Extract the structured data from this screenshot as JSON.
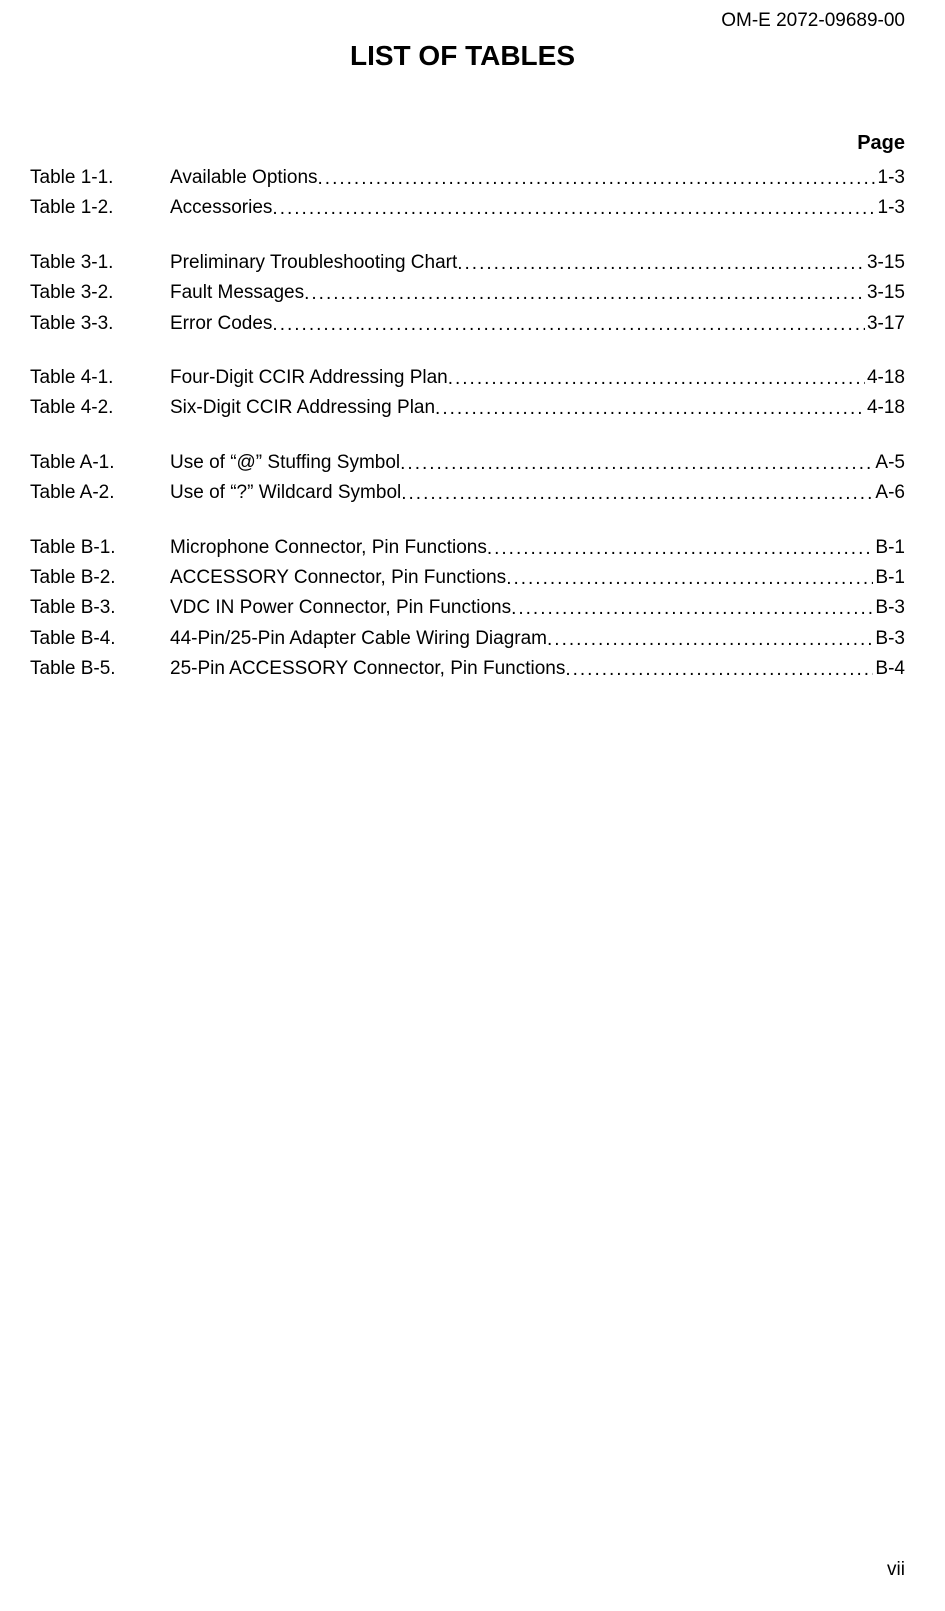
{
  "document_id": "OM-E 2072-09689-00",
  "title": "LIST OF TABLES",
  "page_header": "Page",
  "page_number": "vii",
  "groups": [
    {
      "entries": [
        {
          "label": "Table 1-1.",
          "title": "Available Options",
          "page": "1-3"
        },
        {
          "label": "Table 1-2.",
          "title": "Accessories",
          "page": "1-3"
        }
      ]
    },
    {
      "entries": [
        {
          "label": "Table 3-1.",
          "title": "Preliminary Troubleshooting Chart",
          "page": "3-15"
        },
        {
          "label": "Table 3-2.",
          "title": "Fault Messages",
          "page": "3-15"
        },
        {
          "label": "Table 3-3.",
          "title": "Error Codes",
          "page": "3-17"
        }
      ]
    },
    {
      "entries": [
        {
          "label": "Table 4-1.",
          "title": "Four-Digit CCIR Addressing Plan",
          "page": "4-18"
        },
        {
          "label": "Table 4-2.",
          "title": "Six-Digit CCIR Addressing Plan",
          "page": "4-18"
        }
      ]
    },
    {
      "entries": [
        {
          "label": "Table A-1.",
          "title": "Use of “@” Stuffing Symbol",
          "page": "A-5"
        },
        {
          "label": "Table A-2.",
          "title": "Use of “?” Wildcard Symbol",
          "page": "A-6"
        }
      ]
    },
    {
      "entries": [
        {
          "label": "Table B-1.",
          "title": "Microphone Connector, Pin Functions",
          "page": "B-1"
        },
        {
          "label": "Table B-2.",
          "title": "ACCESSORY Connector, Pin Functions",
          "page": "B-1"
        },
        {
          "label": "Table B-3.",
          "title": "VDC IN Power Connector, Pin Functions",
          "page": "B-3"
        },
        {
          "label": "Table B-4.",
          "title": "44-Pin/25-Pin Adapter Cable Wiring Diagram",
          "page": "B-3"
        },
        {
          "label": "Table B-5.",
          "title": "25-Pin ACCESSORY Connector, Pin Functions",
          "page": "B-4"
        }
      ]
    }
  ]
}
